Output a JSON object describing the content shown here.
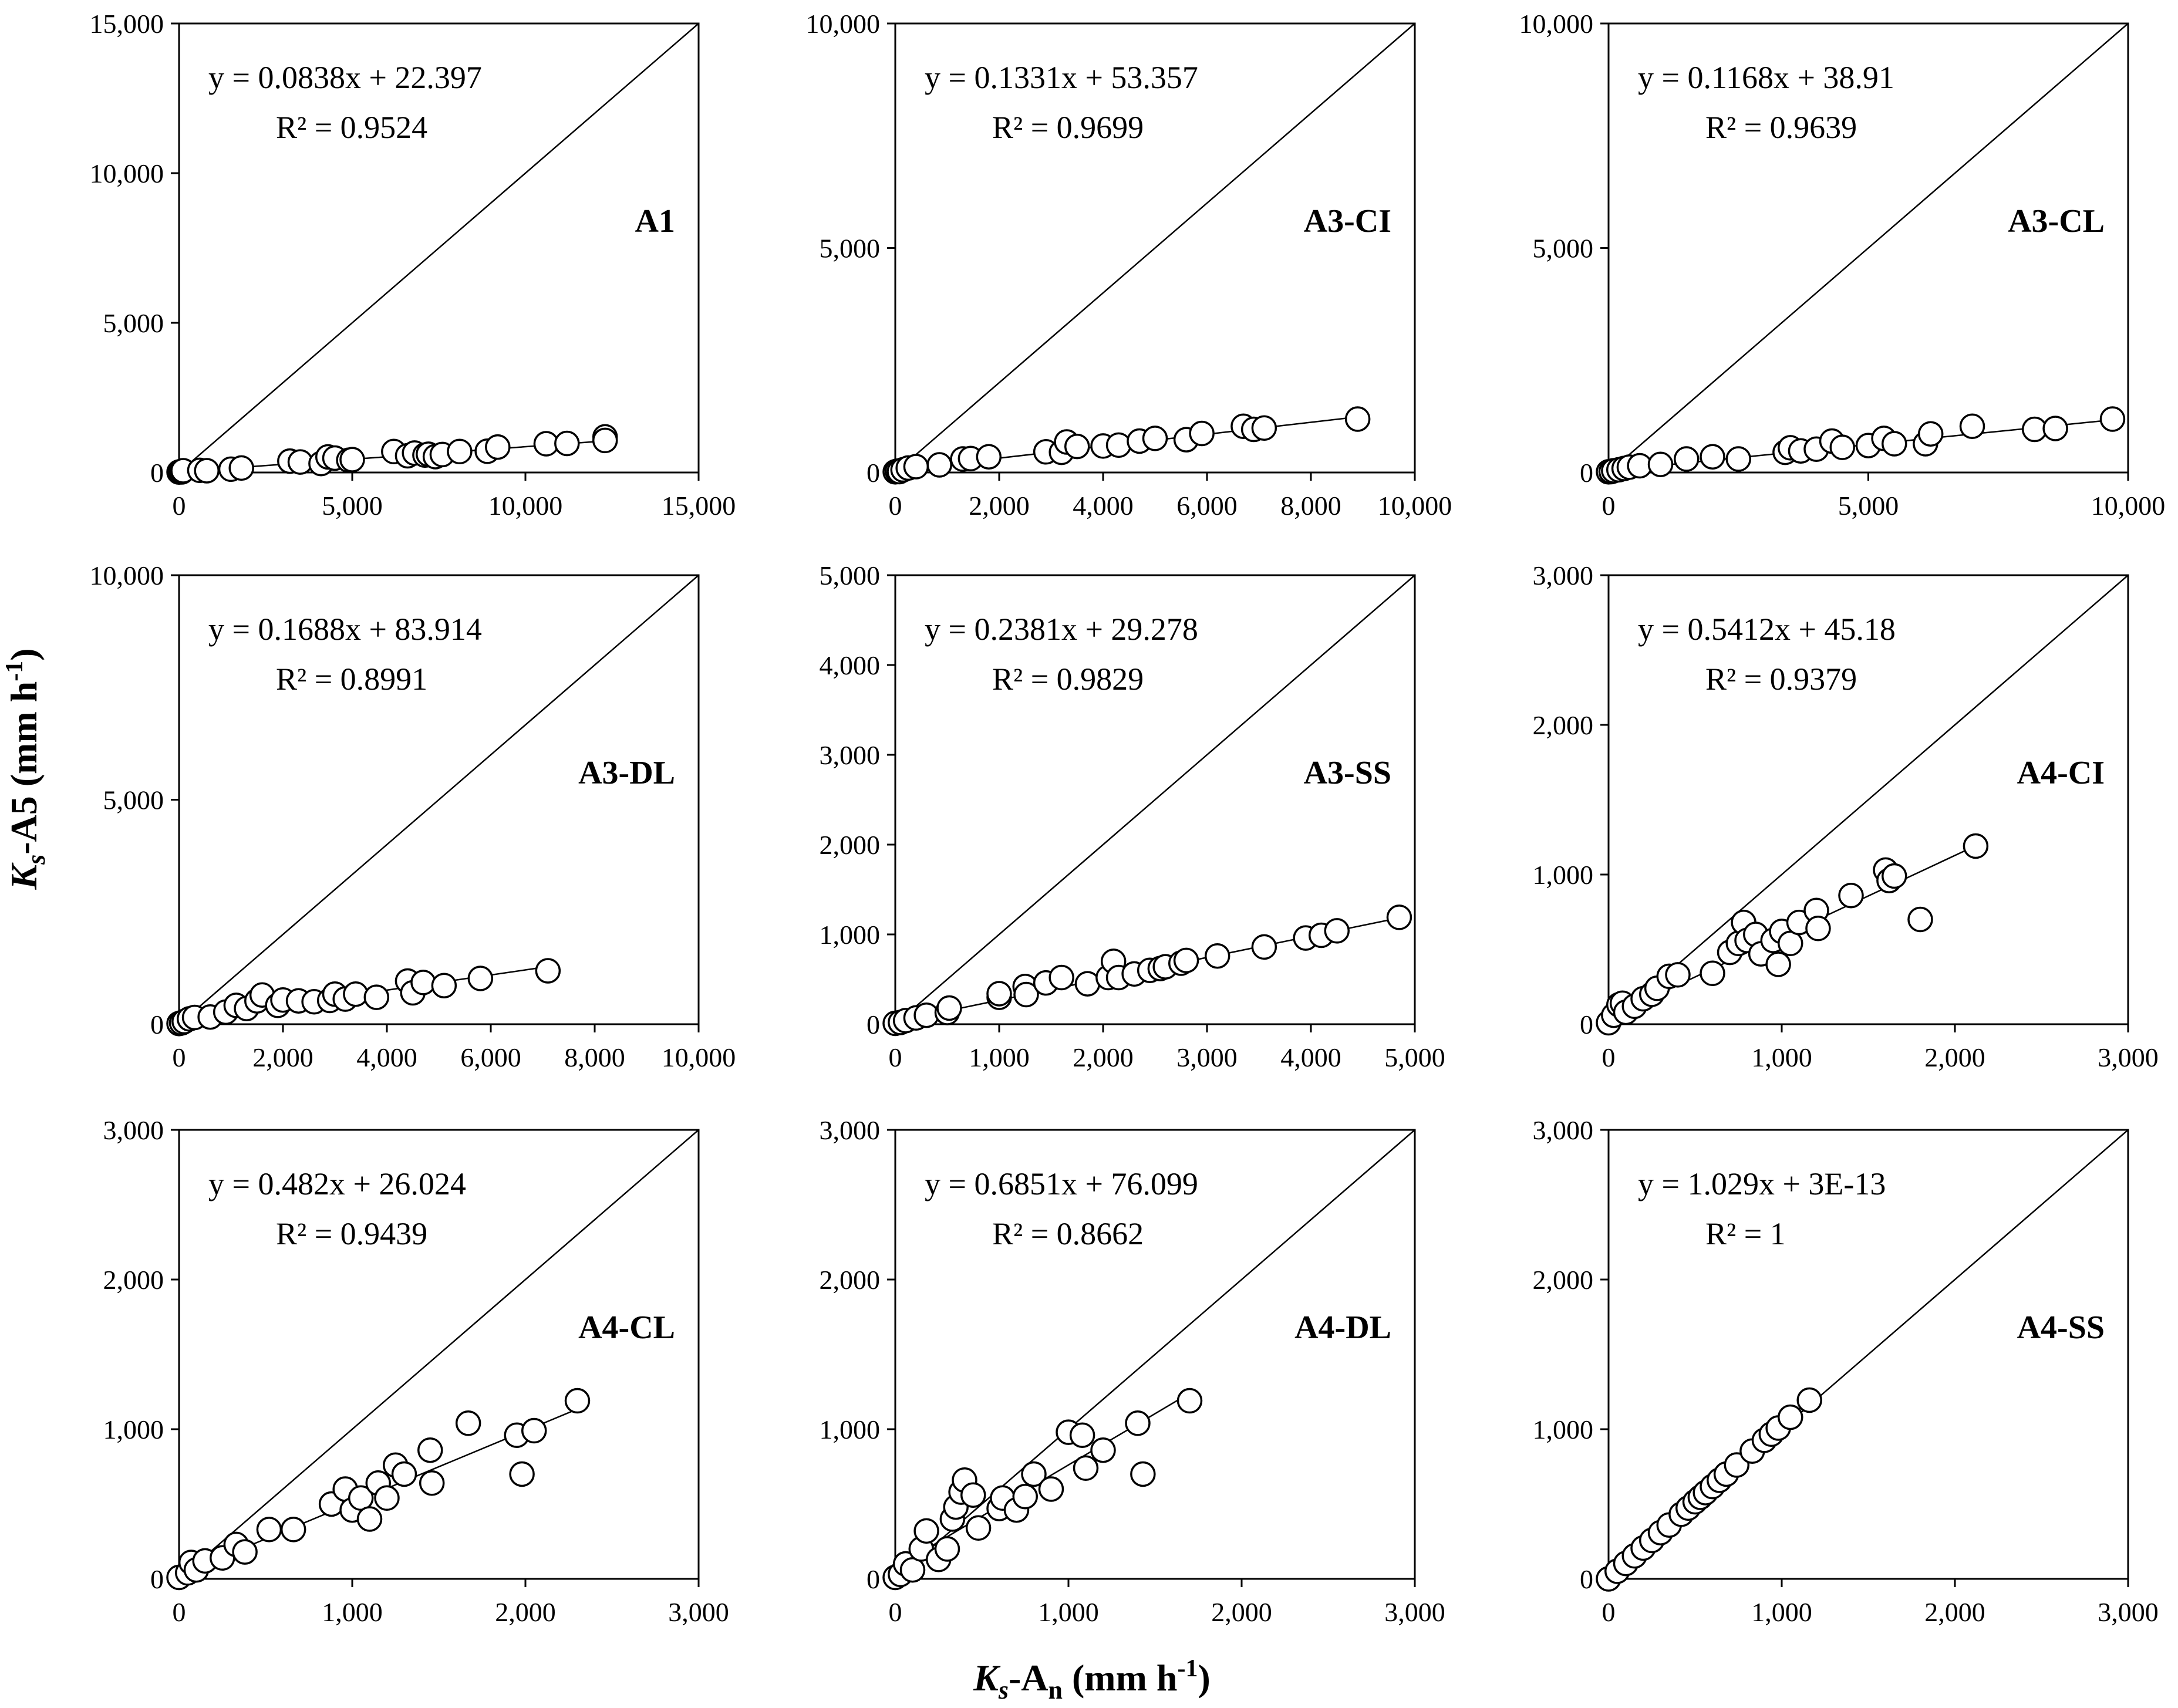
{
  "figure": {
    "y_axis_title": {
      "K": "K",
      "s": "s",
      "rest": "-A5 (mm h",
      "sup": "-1",
      "close": ")"
    },
    "x_axis_title": {
      "K": "K",
      "s": "s",
      "mid": "-A",
      "n": "n",
      "rest": " (mm h",
      "sup": "-1",
      "close": ")"
    }
  },
  "chart_data": [
    {
      "type": "scatter",
      "label": "A1",
      "equation": "y = 0.0838x + 22.397",
      "r2": "R² = 0.9524",
      "xlim": [
        0,
        15000
      ],
      "ylim": [
        0,
        15000
      ],
      "xticks": [
        0,
        5000,
        10000,
        15000
      ],
      "yticks": [
        0,
        5000,
        10000,
        15000
      ],
      "xtick_labels": [
        "0",
        "5,000",
        "10,000",
        "15,000"
      ],
      "ytick_labels": [
        "0",
        "5,000",
        "10,000",
        "15,000"
      ],
      "fit": {
        "slope": 0.0838,
        "intercept": 22.397,
        "x_start": 0,
        "x_end": 12300
      },
      "points": [
        [
          0,
          15
        ],
        [
          50,
          30
        ],
        [
          80,
          20
        ],
        [
          120,
          60
        ],
        [
          600,
          70
        ],
        [
          800,
          60
        ],
        [
          1500,
          110
        ],
        [
          1800,
          150
        ],
        [
          3200,
          380
        ],
        [
          3500,
          350
        ],
        [
          4100,
          300
        ],
        [
          4300,
          520
        ],
        [
          4500,
          480
        ],
        [
          4900,
          410
        ],
        [
          5000,
          430
        ],
        [
          6200,
          700
        ],
        [
          6600,
          560
        ],
        [
          6800,
          650
        ],
        [
          7100,
          580
        ],
        [
          7200,
          610
        ],
        [
          7400,
          530
        ],
        [
          7600,
          600
        ],
        [
          8100,
          700
        ],
        [
          8900,
          710
        ],
        [
          9200,
          850
        ],
        [
          10600,
          960
        ],
        [
          11200,
          970
        ],
        [
          12300,
          1190
        ],
        [
          12300,
          1070
        ]
      ]
    },
    {
      "type": "scatter",
      "label": "A3-CI",
      "equation": "y = 0.1331x + 53.357",
      "r2": "R² = 0.9699",
      "xlim": [
        0,
        10000
      ],
      "ylim": [
        0,
        10000
      ],
      "xticks": [
        0,
        2000,
        4000,
        6000,
        8000,
        10000
      ],
      "yticks": [
        0,
        5000,
        10000
      ],
      "xtick_labels": [
        "0",
        "2,000",
        "4,000",
        "6,000",
        "8,000",
        "10,000"
      ],
      "ytick_labels": [
        "0",
        "5,000",
        "10,000"
      ],
      "fit": {
        "slope": 0.1331,
        "intercept": 53.357,
        "x_start": 0,
        "x_end": 8900
      },
      "points": [
        [
          0,
          15
        ],
        [
          40,
          30
        ],
        [
          80,
          20
        ],
        [
          150,
          60
        ],
        [
          250,
          100
        ],
        [
          400,
          130
        ],
        [
          850,
          170
        ],
        [
          1300,
          300
        ],
        [
          1450,
          310
        ],
        [
          1800,
          350
        ],
        [
          2900,
          460
        ],
        [
          3200,
          450
        ],
        [
          3300,
          680
        ],
        [
          3500,
          580
        ],
        [
          4000,
          590
        ],
        [
          4300,
          610
        ],
        [
          4700,
          700
        ],
        [
          5000,
          760
        ],
        [
          5600,
          730
        ],
        [
          5900,
          870
        ],
        [
          6700,
          1030
        ],
        [
          6900,
          960
        ],
        [
          7100,
          990
        ],
        [
          8900,
          1190
        ]
      ]
    },
    {
      "type": "scatter",
      "label": "A3-CL",
      "equation": "y = 0.1168x + 38.91",
      "r2": "R² = 0.9639",
      "xlim": [
        0,
        10000
      ],
      "ylim": [
        0,
        10000
      ],
      "xticks": [
        0,
        5000,
        10000
      ],
      "yticks": [
        0,
        5000,
        10000
      ],
      "xtick_labels": [
        "0",
        "5,000",
        "10,000"
      ],
      "ytick_labels": [
        "0",
        "5,000",
        "10,000"
      ],
      "fit": {
        "slope": 0.1168,
        "intercept": 38.91,
        "x_start": 0,
        "x_end": 9700
      },
      "points": [
        [
          0,
          15
        ],
        [
          50,
          20
        ],
        [
          100,
          40
        ],
        [
          200,
          60
        ],
        [
          300,
          90
        ],
        [
          400,
          120
        ],
        [
          600,
          150
        ],
        [
          1000,
          180
        ],
        [
          1500,
          300
        ],
        [
          2000,
          350
        ],
        [
          2500,
          300
        ],
        [
          3400,
          450
        ],
        [
          3500,
          550
        ],
        [
          3700,
          480
        ],
        [
          4000,
          520
        ],
        [
          4300,
          700
        ],
        [
          4500,
          560
        ],
        [
          5000,
          600
        ],
        [
          5300,
          760
        ],
        [
          5500,
          640
        ],
        [
          6100,
          640
        ],
        [
          6200,
          860
        ],
        [
          7000,
          1030
        ],
        [
          8200,
          960
        ],
        [
          8600,
          980
        ],
        [
          9700,
          1190
        ]
      ]
    },
    {
      "type": "scatter",
      "label": "A3-DL",
      "equation": "y = 0.1688x + 83.914",
      "r2": "R² = 0.8991",
      "xlim": [
        0,
        10000
      ],
      "ylim": [
        0,
        10000
      ],
      "xticks": [
        0,
        2000,
        4000,
        6000,
        8000,
        10000
      ],
      "yticks": [
        0,
        5000,
        10000
      ],
      "xtick_labels": [
        "0",
        "2,000",
        "4,000",
        "6,000",
        "8,000",
        "10,000"
      ],
      "ytick_labels": [
        "0",
        "5,000",
        "10,000"
      ],
      "fit": {
        "slope": 0.1688,
        "intercept": 83.914,
        "x_start": 0,
        "x_end": 7100
      },
      "points": [
        [
          0,
          15
        ],
        [
          50,
          30
        ],
        [
          100,
          60
        ],
        [
          200,
          120
        ],
        [
          300,
          150
        ],
        [
          600,
          160
        ],
        [
          900,
          270
        ],
        [
          1100,
          420
        ],
        [
          1300,
          350
        ],
        [
          1500,
          520
        ],
        [
          1600,
          650
        ],
        [
          1900,
          420
        ],
        [
          2000,
          540
        ],
        [
          2300,
          520
        ],
        [
          2600,
          500
        ],
        [
          2900,
          530
        ],
        [
          3000,
          670
        ],
        [
          3200,
          560
        ],
        [
          3400,
          670
        ],
        [
          3800,
          600
        ],
        [
          4400,
          960
        ],
        [
          4500,
          700
        ],
        [
          4700,
          930
        ],
        [
          5100,
          860
        ],
        [
          5800,
          1020
        ],
        [
          7100,
          1190
        ]
      ]
    },
    {
      "type": "scatter",
      "label": "A3-SS",
      "equation": "y = 0.2381x + 29.278",
      "r2": "R² = 0.9829",
      "xlim": [
        0,
        5000
      ],
      "ylim": [
        0,
        5000
      ],
      "xticks": [
        0,
        1000,
        2000,
        3000,
        4000,
        5000
      ],
      "yticks": [
        0,
        1000,
        2000,
        3000,
        4000,
        5000
      ],
      "xtick_labels": [
        "0",
        "1,000",
        "2,000",
        "3,000",
        "4,000",
        "5,000"
      ],
      "ytick_labels": [
        "0",
        "1,000",
        "2,000",
        "3,000",
        "4,000",
        "5,000"
      ],
      "fit": {
        "slope": 0.2381,
        "intercept": 29.278,
        "x_start": 0,
        "x_end": 4850
      },
      "points": [
        [
          0,
          10
        ],
        [
          50,
          20
        ],
        [
          100,
          40
        ],
        [
          200,
          70
        ],
        [
          300,
          100
        ],
        [
          500,
          130
        ],
        [
          520,
          180
        ],
        [
          1000,
          300
        ],
        [
          1000,
          340
        ],
        [
          1250,
          420
        ],
        [
          1260,
          330
        ],
        [
          1450,
          460
        ],
        [
          1600,
          520
        ],
        [
          1850,
          450
        ],
        [
          2050,
          520
        ],
        [
          2100,
          700
        ],
        [
          2150,
          520
        ],
        [
          2300,
          560
        ],
        [
          2450,
          600
        ],
        [
          2550,
          620
        ],
        [
          2600,
          640
        ],
        [
          2750,
          680
        ],
        [
          2800,
          710
        ],
        [
          3100,
          760
        ],
        [
          3550,
          860
        ],
        [
          3950,
          960
        ],
        [
          4100,
          990
        ],
        [
          4250,
          1040
        ],
        [
          4850,
          1190
        ]
      ]
    },
    {
      "type": "scatter",
      "label": "A4-CI",
      "equation": "y = 0.5412x + 45.18",
      "r2": "R² = 0.9379",
      "xlim": [
        0,
        3000
      ],
      "ylim": [
        0,
        3000
      ],
      "xticks": [
        0,
        1000,
        2000,
        3000
      ],
      "yticks": [
        0,
        1000,
        2000,
        3000
      ],
      "xtick_labels": [
        "0",
        "1,000",
        "2,000",
        "3,000"
      ],
      "ytick_labels": [
        "0",
        "1,000",
        "2,000",
        "3,000"
      ],
      "fit": {
        "slope": 0.5412,
        "intercept": 45.18,
        "x_start": 0,
        "x_end": 2120
      },
      "points": [
        [
          0,
          10
        ],
        [
          30,
          60
        ],
        [
          60,
          130
        ],
        [
          80,
          140
        ],
        [
          100,
          80
        ],
        [
          150,
          120
        ],
        [
          200,
          170
        ],
        [
          250,
          200
        ],
        [
          280,
          240
        ],
        [
          350,
          320
        ],
        [
          400,
          330
        ],
        [
          600,
          340
        ],
        [
          700,
          480
        ],
        [
          750,
          540
        ],
        [
          780,
          680
        ],
        [
          800,
          560
        ],
        [
          850,
          600
        ],
        [
          880,
          470
        ],
        [
          950,
          560
        ],
        [
          980,
          400
        ],
        [
          1000,
          620
        ],
        [
          1050,
          540
        ],
        [
          1100,
          680
        ],
        [
          1200,
          760
        ],
        [
          1210,
          640
        ],
        [
          1400,
          860
        ],
        [
          1600,
          1030
        ],
        [
          1620,
          960
        ],
        [
          1650,
          990
        ],
        [
          1800,
          700
        ],
        [
          2120,
          1190
        ]
      ]
    },
    {
      "type": "scatter",
      "label": "A4-CL",
      "equation": "y = 0.482x + 26.024",
      "r2": "R² = 0.9439",
      "xlim": [
        0,
        3000
      ],
      "ylim": [
        0,
        3000
      ],
      "xticks": [
        0,
        1000,
        2000,
        3000
      ],
      "yticks": [
        0,
        1000,
        2000,
        3000
      ],
      "xtick_labels": [
        "0",
        "1,000",
        "2,000",
        "3,000"
      ],
      "ytick_labels": [
        "0",
        "1,000",
        "2,000",
        "3,000"
      ],
      "fit": {
        "slope": 0.482,
        "intercept": 26.024,
        "x_start": 0,
        "x_end": 2300
      },
      "points": [
        [
          0,
          10
        ],
        [
          50,
          40
        ],
        [
          70,
          110
        ],
        [
          100,
          60
        ],
        [
          150,
          120
        ],
        [
          250,
          140
        ],
        [
          330,
          230
        ],
        [
          380,
          180
        ],
        [
          520,
          330
        ],
        [
          660,
          330
        ],
        [
          880,
          500
        ],
        [
          960,
          600
        ],
        [
          1000,
          460
        ],
        [
          1050,
          540
        ],
        [
          1100,
          400
        ],
        [
          1150,
          640
        ],
        [
          1200,
          540
        ],
        [
          1250,
          760
        ],
        [
          1300,
          700
        ],
        [
          1450,
          860
        ],
        [
          1460,
          640
        ],
        [
          1670,
          1040
        ],
        [
          1950,
          960
        ],
        [
          1980,
          700
        ],
        [
          2050,
          990
        ],
        [
          2300,
          1190
        ]
      ]
    },
    {
      "type": "scatter",
      "label": "A4-DL",
      "equation": "y = 0.6851x + 76.099",
      "r2": "R² = 0.8662",
      "xlim": [
        0,
        3000
      ],
      "ylim": [
        0,
        3000
      ],
      "xticks": [
        0,
        1000,
        2000,
        3000
      ],
      "yticks": [
        0,
        1000,
        2000,
        3000
      ],
      "xtick_labels": [
        "0",
        "1,000",
        "2,000",
        "3,000"
      ],
      "ytick_labels": [
        "0",
        "1,000",
        "2,000",
        "3,000"
      ],
      "fit": {
        "slope": 0.6851,
        "intercept": 76.099,
        "x_start": 0,
        "x_end": 1700
      },
      "points": [
        [
          0,
          10
        ],
        [
          30,
          30
        ],
        [
          60,
          100
        ],
        [
          100,
          60
        ],
        [
          150,
          200
        ],
        [
          180,
          320
        ],
        [
          250,
          130
        ],
        [
          300,
          200
        ],
        [
          330,
          400
        ],
        [
          350,
          480
        ],
        [
          380,
          580
        ],
        [
          400,
          660
        ],
        [
          450,
          560
        ],
        [
          480,
          340
        ],
        [
          600,
          470
        ],
        [
          620,
          540
        ],
        [
          700,
          460
        ],
        [
          750,
          550
        ],
        [
          800,
          700
        ],
        [
          900,
          600
        ],
        [
          1000,
          980
        ],
        [
          1080,
          960
        ],
        [
          1100,
          740
        ],
        [
          1200,
          860
        ],
        [
          1400,
          1040
        ],
        [
          1430,
          700
        ],
        [
          1700,
          1190
        ]
      ]
    },
    {
      "type": "scatter",
      "label": "A4-SS",
      "equation": "y = 1.029x + 3E-13",
      "r2": "R² = 1",
      "xlim": [
        0,
        3000
      ],
      "ylim": [
        0,
        3000
      ],
      "xticks": [
        0,
        1000,
        2000,
        3000
      ],
      "yticks": [
        0,
        1000,
        2000,
        3000
      ],
      "xtick_labels": [
        "0",
        "1,000",
        "2,000",
        "3,000"
      ],
      "ytick_labels": [
        "0",
        "1,000",
        "2,000",
        "3,000"
      ],
      "fit": {
        "slope": 1.029,
        "intercept": 0,
        "x_start": 0,
        "x_end": 1160
      },
      "points": [
        [
          0,
          0
        ],
        [
          50,
          51
        ],
        [
          100,
          103
        ],
        [
          150,
          154
        ],
        [
          200,
          206
        ],
        [
          250,
          257
        ],
        [
          300,
          309
        ],
        [
          350,
          360
        ],
        [
          420,
          432
        ],
        [
          460,
          473
        ],
        [
          500,
          515
        ],
        [
          530,
          545
        ],
        [
          560,
          576
        ],
        [
          600,
          617
        ],
        [
          640,
          659
        ],
        [
          680,
          700
        ],
        [
          740,
          761
        ],
        [
          830,
          854
        ],
        [
          900,
          926
        ],
        [
          940,
          967
        ],
        [
          980,
          1008
        ],
        [
          1050,
          1080
        ],
        [
          1160,
          1194
        ]
      ]
    }
  ]
}
